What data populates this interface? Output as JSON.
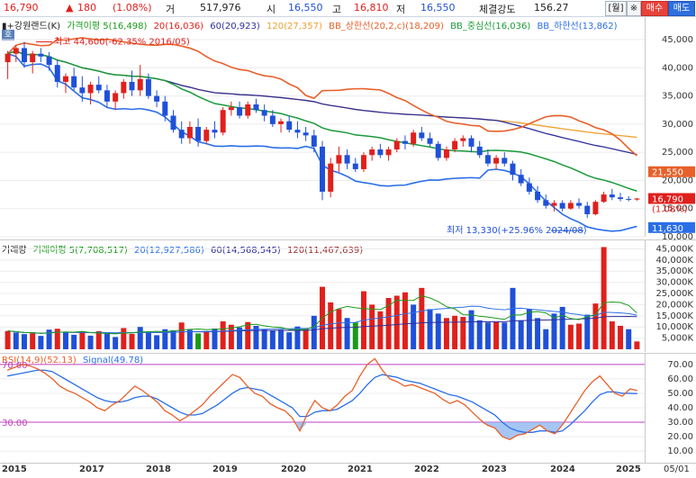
{
  "header": {
    "price": "16,790",
    "change_arrow": "▲",
    "change": "180",
    "change_pct": "(1.08%)",
    "volume_label": "거",
    "volume": "517,976",
    "open_label": "시",
    "open": "16,550",
    "high_label": "고",
    "high": "16,810",
    "low_label": "저",
    "low": "16,550",
    "strength_label": "체결강도",
    "strength": "156.27",
    "period_button": "[월]",
    "settings_button": "※",
    "buy_button": "매수",
    "sell_button": "매도"
  },
  "price_panel": {
    "title": "▮+강원랜드(K)",
    "legend": [
      {
        "text": "가격이평 5(16,498)",
        "color": "#1a9a1a"
      },
      {
        "text": "20(16,036)",
        "color": "#e0201c"
      },
      {
        "text": "60(20,923)",
        "color": "#2f2f9a"
      },
      {
        "text": "120(27,357)",
        "color": "#f0a030"
      },
      {
        "text": "BB_상한선(20,2,c)(18,209)",
        "color": "#e8602a"
      },
      {
        "text": "BB_중심선(16,036)",
        "color": "#1a9a3a"
      },
      {
        "text": "BB_하한선(13,862)",
        "color": "#2a6ee8"
      }
    ],
    "ho_badge": "호",
    "high_annotation": "최고 44,600(-62.35% 2016/05)",
    "low_annotation": "최저 13,330(+25.96% 2024/08)",
    "yticks": [
      "45,000",
      "40,000",
      "35,000",
      "30,000",
      "25,000",
      "20,000",
      "15,000",
      "10,000"
    ],
    "bb_upper_label": "21,550",
    "current_label": "16,790",
    "current_pct_label": "(1.08%)",
    "bb_lower_label": "11,630",
    "ymin": 10000,
    "ymax": 49000,
    "candles": [
      [
        41000,
        43000,
        38000,
        42500
      ],
      [
        42500,
        44000,
        41000,
        43500
      ],
      [
        43500,
        44600,
        40000,
        41000
      ],
      [
        41000,
        43000,
        39000,
        42500
      ],
      [
        42500,
        43500,
        41000,
        42000
      ],
      [
        42000,
        42800,
        39500,
        40500
      ],
      [
        40500,
        41500,
        36500,
        37500
      ],
      [
        37500,
        39000,
        35500,
        38500
      ],
      [
        38500,
        40000,
        36000,
        36500
      ],
      [
        36500,
        38500,
        34000,
        35500
      ],
      [
        35500,
        37500,
        33500,
        37000
      ],
      [
        37000,
        38500,
        35500,
        36000
      ],
      [
        36000,
        37000,
        33000,
        34000
      ],
      [
        34000,
        36000,
        32500,
        35500
      ],
      [
        35500,
        38000,
        34500,
        37500
      ],
      [
        37500,
        39500,
        35000,
        36000
      ],
      [
        36000,
        40500,
        35000,
        38000
      ],
      [
        38000,
        39000,
        34500,
        35000
      ],
      [
        35000,
        36000,
        33000,
        34000
      ],
      [
        34000,
        35000,
        30500,
        31500
      ],
      [
        31500,
        32500,
        28500,
        29000
      ],
      [
        29000,
        30500,
        26500,
        27500
      ],
      [
        27500,
        30500,
        26500,
        29500
      ],
      [
        29500,
        31000,
        26000,
        27000
      ],
      [
        27000,
        29500,
        26500,
        29000
      ],
      [
        29000,
        30500,
        27500,
        28500
      ],
      [
        28500,
        33000,
        28000,
        32500
      ],
      [
        32500,
        34000,
        31500,
        33000
      ],
      [
        33000,
        34000,
        31000,
        31500
      ],
      [
        31500,
        34000,
        31000,
        33500
      ],
      [
        33500,
        34500,
        32000,
        32500
      ],
      [
        32500,
        33500,
        30500,
        31500
      ],
      [
        31500,
        32500,
        29500,
        30000
      ],
      [
        30000,
        31000,
        28500,
        30500
      ],
      [
        30500,
        31500,
        28500,
        29000
      ],
      [
        29000,
        30500,
        27500,
        28500
      ],
      [
        28500,
        29500,
        27000,
        28000
      ],
      [
        28000,
        29000,
        25000,
        26000
      ],
      [
        26000,
        27000,
        16500,
        18000
      ],
      [
        18000,
        24000,
        17000,
        23000
      ],
      [
        23000,
        26000,
        21500,
        24500
      ],
      [
        24500,
        25500,
        22000,
        23000
      ],
      [
        23000,
        24000,
        21500,
        22000
      ],
      [
        22000,
        25000,
        21500,
        24500
      ],
      [
        24500,
        26000,
        23500,
        25500
      ],
      [
        25500,
        26500,
        24000,
        24500
      ],
      [
        24500,
        26000,
        23500,
        25500
      ],
      [
        25500,
        27500,
        25000,
        27000
      ],
      [
        27000,
        28000,
        25500,
        26500
      ],
      [
        26500,
        29000,
        26000,
        28500
      ],
      [
        28500,
        29500,
        27000,
        27500
      ],
      [
        27500,
        28500,
        26000,
        26500
      ],
      [
        26500,
        27000,
        23500,
        24000
      ],
      [
        24000,
        26000,
        23500,
        25500
      ],
      [
        25500,
        27500,
        25000,
        27000
      ],
      [
        27000,
        28000,
        26000,
        27500
      ],
      [
        27500,
        28000,
        25000,
        26000
      ],
      [
        26000,
        27000,
        24000,
        24500
      ],
      [
        24500,
        25500,
        22500,
        23000
      ],
      [
        23000,
        24500,
        22000,
        24000
      ],
      [
        24000,
        25000,
        22500,
        23000
      ],
      [
        23000,
        23500,
        20000,
        21000
      ],
      [
        21000,
        22000,
        19000,
        19500
      ],
      [
        19500,
        20500,
        17500,
        18000
      ],
      [
        18000,
        19000,
        16000,
        16500
      ],
      [
        16500,
        17500,
        15000,
        15500
      ],
      [
        15500,
        16500,
        14500,
        16000
      ],
      [
        16000,
        16500,
        14500,
        15000
      ],
      [
        15000,
        16500,
        14800,
        16000
      ],
      [
        16000,
        16800,
        15000,
        15500
      ],
      [
        15500,
        16200,
        13330,
        14000
      ],
      [
        14000,
        16500,
        13800,
        16200
      ],
      [
        16200,
        18000,
        16000,
        17500
      ],
      [
        17500,
        18500,
        16500,
        17000
      ],
      [
        17000,
        17800,
        16300,
        16700
      ],
      [
        16700,
        17200,
        16300,
        16610
      ],
      [
        16610,
        16900,
        16400,
        16790
      ]
    ]
  },
  "volume_panel": {
    "legend": [
      {
        "text": "거래량",
        "color": "#222"
      },
      {
        "text": "거래이평 5(7,708,517)",
        "color": "#1a9a1a"
      },
      {
        "text": "20(12,927,586)",
        "color": "#2a6ee8"
      },
      {
        "text": "60(14,568,545)",
        "color": "#2f2f9a"
      },
      {
        "text": "120(11,467,639)",
        "color": "#a03030"
      }
    ],
    "yticks": [
      "45,000K",
      "40,000K",
      "35,000K",
      "30,000K",
      "25,000K",
      "20,000K",
      "15,000K",
      "10,000K",
      "5,000K"
    ],
    "unit_label": "K",
    "ymax": 48000,
    "bars": [
      [
        8200,
        "r"
      ],
      [
        7500,
        "b"
      ],
      [
        6800,
        "b"
      ],
      [
        7200,
        "r"
      ],
      [
        6000,
        "b"
      ],
      [
        8800,
        "b"
      ],
      [
        9200,
        "r"
      ],
      [
        7700,
        "b"
      ],
      [
        6500,
        "b"
      ],
      [
        7900,
        "r"
      ],
      [
        6100,
        "b"
      ],
      [
        8100,
        "r"
      ],
      [
        7000,
        "b"
      ],
      [
        5500,
        "b"
      ],
      [
        9500,
        "r"
      ],
      [
        6900,
        "r"
      ],
      [
        10000,
        "b"
      ],
      [
        7400,
        "b"
      ],
      [
        6300,
        "b"
      ],
      [
        9000,
        "b"
      ],
      [
        8500,
        "b"
      ],
      [
        12000,
        "r"
      ],
      [
        8700,
        "b"
      ],
      [
        7100,
        "g"
      ],
      [
        7800,
        "r"
      ],
      [
        9300,
        "b"
      ],
      [
        12500,
        "r"
      ],
      [
        11000,
        "r"
      ],
      [
        9800,
        "b"
      ],
      [
        12200,
        "r"
      ],
      [
        10500,
        "b"
      ],
      [
        9000,
        "b"
      ],
      [
        8400,
        "b"
      ],
      [
        8800,
        "b"
      ],
      [
        7600,
        "b"
      ],
      [
        10200,
        "b"
      ],
      [
        9100,
        "r"
      ],
      [
        15000,
        "b"
      ],
      [
        28000,
        "r"
      ],
      [
        21000,
        "r"
      ],
      [
        18000,
        "r"
      ],
      [
        14000,
        "b"
      ],
      [
        12000,
        "g"
      ],
      [
        26000,
        "r"
      ],
      [
        20000,
        "r"
      ],
      [
        17000,
        "r"
      ],
      [
        23000,
        "r"
      ],
      [
        24000,
        "r"
      ],
      [
        25500,
        "r"
      ],
      [
        20000,
        "b"
      ],
      [
        27500,
        "r"
      ],
      [
        18000,
        "b"
      ],
      [
        16000,
        "b"
      ],
      [
        14000,
        "r"
      ],
      [
        15000,
        "r"
      ],
      [
        14500,
        "r"
      ],
      [
        17500,
        "b"
      ],
      [
        13000,
        "b"
      ],
      [
        12000,
        "b"
      ],
      [
        12500,
        "r"
      ],
      [
        12000,
        "b"
      ],
      [
        27500,
        "b"
      ],
      [
        13000,
        "b"
      ],
      [
        18000,
        "b"
      ],
      [
        14000,
        "b"
      ],
      [
        9000,
        "b"
      ],
      [
        16000,
        "b"
      ],
      [
        19000,
        "b"
      ],
      [
        11000,
        "r"
      ],
      [
        11500,
        "r"
      ],
      [
        15500,
        "b"
      ],
      [
        20500,
        "r"
      ],
      [
        45800,
        "r"
      ],
      [
        12500,
        "r"
      ],
      [
        10500,
        "r"
      ],
      [
        9000,
        "b"
      ],
      [
        3500,
        "r"
      ]
    ]
  },
  "rsi_panel": {
    "legend": [
      {
        "text": "RSI(14,9)(52.13)",
        "color": "#e8602a"
      },
      {
        "text": "Signal(49.78)",
        "color": "#2a6ee8"
      }
    ],
    "yticks": [
      "70.00",
      "60.00",
      "50.00",
      "40.00",
      "30.00",
      "20.00",
      "10.00"
    ],
    "level_high": "70.00",
    "level_low": "30.00",
    "rsi": [
      66,
      68,
      70,
      69,
      67,
      64,
      60,
      55,
      52,
      50,
      47,
      44,
      40,
      38,
      42,
      45,
      50,
      55,
      52,
      48,
      44,
      38,
      35,
      31,
      34,
      38,
      42,
      48,
      53,
      58,
      63,
      61,
      55,
      50,
      48,
      43,
      40,
      38,
      33,
      24,
      36,
      45,
      40,
      38,
      42,
      48,
      52,
      62,
      70,
      74,
      66,
      60,
      58,
      55,
      56,
      54,
      52,
      50,
      46,
      43,
      45,
      42,
      37,
      32,
      28,
      26,
      20,
      18,
      21,
      22,
      25,
      28,
      24,
      22,
      28,
      36,
      44,
      52,
      58,
      62,
      56,
      50,
      48,
      53,
      52
    ],
    "signal": [
      62,
      63,
      64,
      65,
      66,
      66,
      65,
      62,
      59,
      56,
      53,
      50,
      47,
      45,
      44,
      44,
      45,
      47,
      48,
      48,
      46,
      43,
      40,
      37,
      35,
      35,
      36,
      39,
      42,
      46,
      50,
      53,
      54,
      53,
      52,
      49,
      46,
      43,
      40,
      34,
      34,
      37,
      38,
      38,
      39,
      42,
      45,
      50,
      56,
      61,
      63,
      62,
      61,
      59,
      58,
      57,
      55,
      53,
      51,
      49,
      48,
      46,
      44,
      41,
      38,
      35,
      30,
      26,
      24,
      23,
      23,
      24,
      24,
      23,
      24,
      28,
      33,
      38,
      44,
      49,
      51,
      51,
      50,
      50,
      49.78
    ]
  },
  "xaxis": {
    "labels": [
      "2015",
      "2017",
      "2018",
      "2019",
      "2020",
      "2021",
      "2022",
      "2023",
      "2024",
      "2025"
    ],
    "date_label": "05/01"
  }
}
